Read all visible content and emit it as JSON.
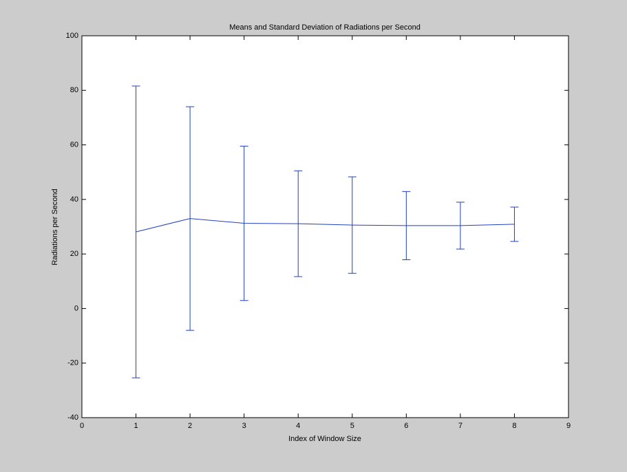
{
  "chart_data": {
    "type": "errorbar",
    "title": "Means and Standard Deviation of Radiations per Second",
    "xlabel": "Index of Window Size",
    "ylabel": "Radiations per Second",
    "x": [
      1,
      2,
      3,
      4,
      5,
      6,
      7,
      8
    ],
    "values": [
      28.1,
      33,
      31.25,
      31.1,
      30.6,
      30.4,
      30.4,
      30.9
    ],
    "errors": [
      53.5,
      41,
      28.3,
      19.4,
      17.7,
      12.5,
      8.6,
      6.3
    ],
    "color": "#1f3fbf",
    "xlim": [
      0,
      9
    ],
    "xticks": [
      0,
      1,
      2,
      3,
      4,
      5,
      6,
      7,
      8,
      9
    ],
    "ylim": [
      -40,
      100
    ],
    "yticks": [
      -40,
      -20,
      0,
      20,
      40,
      60,
      80,
      100
    ],
    "grid": false
  }
}
